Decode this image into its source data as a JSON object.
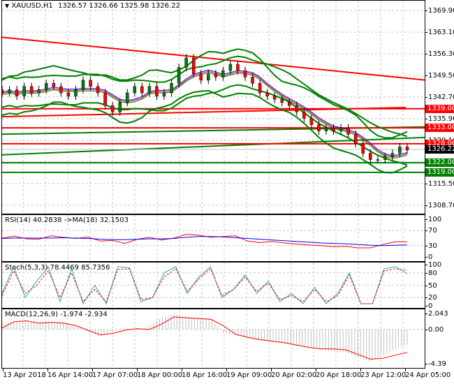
{
  "header": {
    "symbol": "XAUUSD,H1",
    "ohlc": "1326.57 1326.66 1325.98 1326.22",
    "arrow_icon": "triangle-down-icon"
  },
  "main_panel": {
    "price_axis": [
      "1369.90",
      "1363.10",
      "1356.30",
      "1349.50",
      "1342.70",
      "1335.90",
      "1329.10",
      "1322.30",
      "1315.50",
      "1308.70"
    ],
    "current_price": "1326.22",
    "levels": [
      {
        "price": "1339.00",
        "color": "#ff0000",
        "type": "resistance"
      },
      {
        "price": "1333.00",
        "color": "#ff0000",
        "type": "resistance"
      },
      {
        "price": "1328.00",
        "color": "#ff0000",
        "type": "resistance"
      },
      {
        "price": "1322.00",
        "color": "#008000",
        "type": "support"
      },
      {
        "price": "1319.00",
        "color": "#008000",
        "type": "support"
      }
    ]
  },
  "rsi_panel": {
    "title": "RSI(14) 40.2838  ->MA(18) 32.1503",
    "axis": [
      "100",
      "70",
      "30",
      "0"
    ]
  },
  "stoch_panel": {
    "title": "Stoch(5,3,3) 78.4469 85.7356",
    "axis": [
      "100",
      "80",
      "50",
      "20",
      "0"
    ]
  },
  "macd_panel": {
    "title": "MACD(12,26,9) -1.974 -2.934",
    "axis": [
      "2.043",
      "0.00",
      "-4.39"
    ]
  },
  "time_axis": [
    "13 Apr 2018",
    "16 Apr 14:00",
    "17 Apr 07:00",
    "18 Apr 00:00",
    "18 Apr 16:00",
    "19 Apr 09:00",
    "20 Apr 02:00",
    "20 Apr 18:00",
    "23 Apr 12:00",
    "24 Apr 05:00"
  ],
  "colors": {
    "bull_candle": "#008000",
    "bear_candle": "#ff0000",
    "bands": "#008000",
    "trend_red": "#ff0000",
    "rsi": "#ff0000",
    "rsi_ma": "#0000ff",
    "stoch_main": "#20b2aa",
    "stoch_signal": "#ff0000",
    "macd_hist": "#c0c0c0",
    "macd_signal": "#ff0000",
    "current_label_bg": "#000000"
  },
  "chart_data": [
    {
      "type": "candlestick",
      "title": "XAUUSD,H1",
      "xlabel": "",
      "ylabel": "",
      "ylim": [
        1306,
        1373
      ],
      "x_ticks": [
        "13 Apr 2018",
        "16 Apr 14:00",
        "17 Apr 07:00",
        "18 Apr 00:00",
        "18 Apr 16:00",
        "19 Apr 09:00",
        "20 Apr 02:00",
        "20 Apr 18:00",
        "23 Apr 12:00",
        "24 Apr 05:00"
      ],
      "y_ticks": [
        1369.9,
        1363.1,
        1356.3,
        1349.5,
        1342.7,
        1335.9,
        1329.1,
        1322.3,
        1315.5,
        1308.7
      ],
      "last_ohlc": {
        "open": 1326.57,
        "high": 1326.66,
        "low": 1325.98,
        "close": 1326.22
      },
      "horizontal_levels": [
        1339.0,
        1333.0,
        1328.0,
        1322.0,
        1319.0
      ],
      "grid": true,
      "approx_close_series": [
        1344,
        1345,
        1343,
        1346,
        1344,
        1345,
        1347,
        1346,
        1344,
        1343,
        1345,
        1348,
        1346,
        1344,
        1340,
        1338,
        1341,
        1344,
        1346,
        1344,
        1346,
        1343,
        1344,
        1347,
        1352,
        1355,
        1350,
        1348,
        1350,
        1349,
        1351,
        1353,
        1351,
        1349,
        1347,
        1344,
        1343,
        1342,
        1341,
        1340,
        1338,
        1336,
        1334,
        1332,
        1333,
        1332,
        1333,
        1331,
        1328,
        1325,
        1323,
        1323,
        1324,
        1325,
        1327,
        1326
      ]
    },
    {
      "type": "line",
      "title": "RSI(14) 40.2838 ->MA(18) 32.1503",
      "ylim": [
        0,
        100
      ],
      "y_ticks": [
        100,
        70,
        30,
        0
      ],
      "series": [
        {
          "name": "RSI(14)",
          "values": [
            50,
            55,
            48,
            47,
            56,
            52,
            49,
            53,
            42,
            44,
            36,
            47,
            52,
            45,
            50,
            60,
            58,
            52,
            54,
            56,
            42,
            38,
            41,
            37,
            34,
            32,
            30,
            27,
            28,
            24,
            24,
            33,
            40,
            40
          ]
        },
        {
          "name": "MA(18)",
          "values": [
            49,
            50,
            50,
            50,
            50,
            51,
            50,
            49,
            47,
            46,
            46,
            47,
            48,
            48,
            49,
            52,
            54,
            54,
            53,
            51,
            49,
            47,
            45,
            43,
            41,
            39,
            37,
            36,
            35,
            33,
            31,
            30,
            31,
            32
          ]
        }
      ]
    },
    {
      "type": "line",
      "title": "Stoch(5,3,3) 78.4469 85.7356",
      "ylim": [
        0,
        100
      ],
      "y_ticks": [
        100,
        80,
        50,
        20,
        0
      ],
      "series": [
        {
          "name": "%K",
          "values": [
            30,
            95,
            20,
            60,
            95,
            10,
            90,
            5,
            50,
            5,
            95,
            92,
            10,
            20,
            80,
            95,
            30,
            70,
            95,
            20,
            40,
            75,
            30,
            60,
            10,
            30,
            5,
            45,
            5,
            30,
            80,
            5,
            5,
            90,
            95,
            78
          ]
        },
        {
          "name": "%D",
          "values": [
            25,
            85,
            30,
            50,
            85,
            20,
            80,
            10,
            40,
            10,
            88,
            90,
            15,
            20,
            70,
            90,
            35,
            65,
            90,
            25,
            40,
            70,
            35,
            55,
            15,
            25,
            10,
            40,
            10,
            25,
            75,
            5,
            5,
            85,
            90,
            86
          ]
        }
      ]
    },
    {
      "type": "bar",
      "title": "MACD(12,26,9) -1.974 -2.934",
      "ylim": [
        -4.39,
        2.043
      ],
      "y_ticks": [
        2.043,
        0.0,
        -4.39
      ],
      "series": [
        {
          "name": "MACD histogram",
          "values": [
            0.8,
            1.0,
            0.9,
            0.9,
            1.0,
            0.9,
            0.6,
            -0.3,
            -0.9,
            -0.2,
            0.3,
            -0.2,
            0.4,
            1.6,
            2.0,
            1.6,
            1.5,
            1.4,
            -0.4,
            -0.8,
            -1.1,
            -1.4,
            -1.6,
            -1.8,
            -2.1,
            -2.3,
            -2.6,
            -2.8,
            -3.0,
            -3.6,
            -4.1,
            -3.4,
            -2.5,
            -1.97
          ]
        },
        {
          "name": "Signal",
          "values": [
            0.2,
            1.0,
            1.1,
            0.8,
            0.9,
            0.8,
            0.5,
            -0.1,
            -0.7,
            -0.5,
            -0.1,
            0.1,
            0.0,
            0.7,
            1.6,
            1.5,
            1.4,
            1.3,
            0.5,
            -0.6,
            -1.0,
            -1.3,
            -1.5,
            -1.7,
            -2.0,
            -2.3,
            -2.5,
            -2.5,
            -2.6,
            -3.2,
            -3.8,
            -3.7,
            -3.3,
            -2.93
          ]
        }
      ]
    }
  ]
}
